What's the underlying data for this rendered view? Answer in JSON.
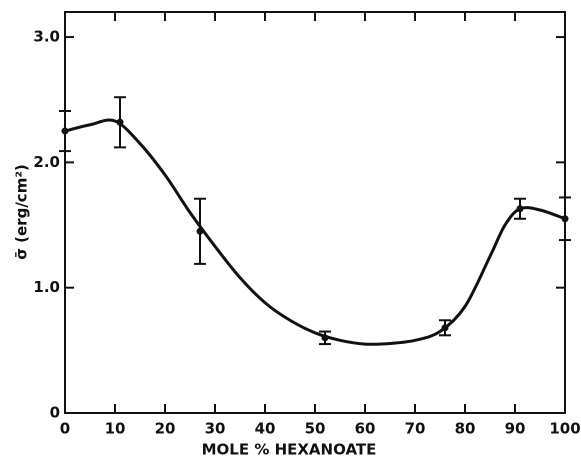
{
  "chart_data": {
    "type": "scatter",
    "xlabel": "MOLE % HEXANOATE",
    "ylabel": "σ̄ (erg/cm²)",
    "x": [
      0,
      11,
      27,
      52,
      76,
      91,
      100
    ],
    "values": [
      2.25,
      2.32,
      1.45,
      0.6,
      0.68,
      1.63,
      1.55
    ],
    "errors": [
      0.16,
      0.2,
      0.26,
      0.05,
      0.06,
      0.08,
      0.17
    ],
    "color": "#111111",
    "curve": {
      "x": [
        0,
        5,
        10,
        15,
        20,
        25,
        30,
        35,
        40,
        45,
        50,
        55,
        60,
        65,
        70,
        75,
        80,
        85,
        88,
        91,
        95,
        100
      ],
      "values": [
        2.25,
        2.3,
        2.33,
        2.15,
        1.9,
        1.6,
        1.33,
        1.08,
        0.88,
        0.74,
        0.64,
        0.58,
        0.55,
        0.555,
        0.58,
        0.65,
        0.85,
        1.25,
        1.5,
        1.63,
        1.62,
        1.55
      ]
    },
    "xlim": [
      0,
      100
    ],
    "xticks": [
      0,
      10,
      20,
      30,
      40,
      50,
      60,
      70,
      80,
      90,
      100
    ],
    "ylim": [
      0,
      3.2
    ],
    "yticks": [
      0,
      {
        "value": 1,
        "label": "1.0"
      },
      {
        "value": 2,
        "label": "2.0"
      },
      {
        "value": 3,
        "label": "3.0"
      }
    ]
  }
}
